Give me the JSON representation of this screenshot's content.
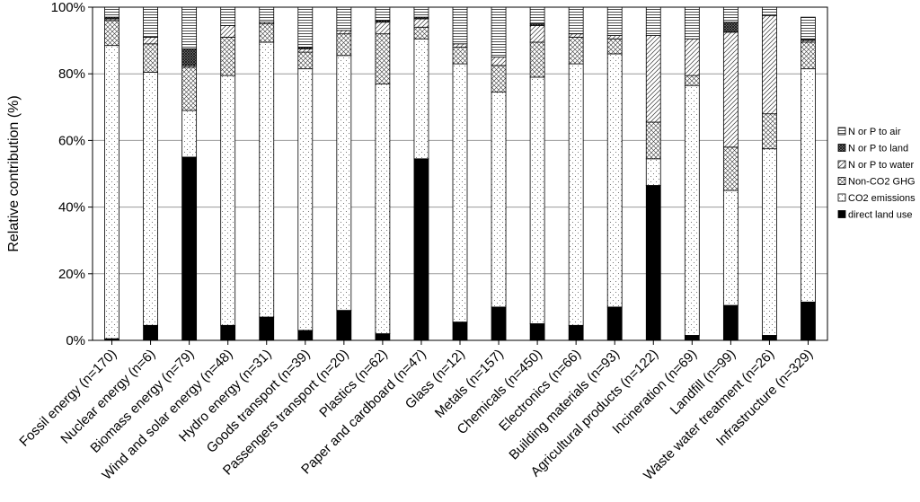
{
  "chart_data": {
    "type": "bar",
    "stacked": true,
    "title": "",
    "xlabel": "",
    "ylabel": "Relative contribution (%)",
    "ylim": [
      0,
      100
    ],
    "yticks": [
      "0%",
      "20%",
      "40%",
      "60%",
      "80%",
      "100%"
    ],
    "grid": true,
    "legend_position": "right",
    "categories": [
      "Fossil energy (n=170)",
      "Nuclear energy (n=6)",
      "Biomass energy (n=79)",
      "Wind and solar energy (n=48)",
      "Hydro energy (n=31)",
      "Goods transport (n=39)",
      "Passengers transport (n=20)",
      "Plastics (n=62)",
      "Paper and cardboard (n=47)",
      "Glass (n=12)",
      "Metals (n=157)",
      "Chemicals (n=450)",
      "Electronics (n=66)",
      "Building materials (n=93)",
      "Agricultural products (n=122)",
      "Incineration (n=69)",
      "Landfill (n=99)",
      "Waste water treatment (n=26)",
      "Infrastructure (n=329)"
    ],
    "series": [
      {
        "name": "direct land use",
        "pattern": "solid",
        "values": [
          0.5,
          4.5,
          55,
          4.5,
          7,
          3,
          9,
          2,
          54.5,
          5.5,
          10,
          5,
          4.5,
          10,
          46.5,
          1.5,
          10.5,
          1.5,
          11.5
        ]
      },
      {
        "name": "CO2 emissions",
        "pattern": "dots",
        "values": [
          88,
          76,
          14,
          75,
          82.5,
          78.5,
          76.5,
          75,
          36,
          77.5,
          64.5,
          74,
          78.5,
          76,
          8,
          75,
          34.5,
          56,
          70
        ]
      },
      {
        "name": "Non-CO2 GHG",
        "pattern": "crosshatch",
        "values": [
          7.5,
          8.5,
          13,
          11.5,
          5.5,
          5,
          6.5,
          15,
          3.5,
          5,
          8,
          10.5,
          8,
          4.5,
          11,
          3,
          13,
          10.5,
          8
        ]
      },
      {
        "name": "N or P to water",
        "pattern": "diagonal",
        "values": [
          0.5,
          2,
          0.5,
          3.5,
          0.5,
          1,
          1,
          3.5,
          2.5,
          1,
          2.5,
          5,
          1,
          1,
          26,
          11,
          34.5,
          29.5,
          0.5
        ]
      },
      {
        "name": "N or P to land",
        "pattern": "dark-crosshatch",
        "values": [
          0.5,
          0,
          5,
          0,
          0,
          0.5,
          0,
          0.5,
          0.5,
          0,
          0,
          0.5,
          0,
          0,
          0,
          0,
          3,
          0,
          0.5
        ]
      },
      {
        "name": "N or P to air",
        "pattern": "horizontal",
        "values": [
          3,
          9,
          12.5,
          5.5,
          4.5,
          12,
          7,
          4,
          3,
          11,
          15,
          5,
          8,
          8.5,
          8.5,
          9.5,
          4.5,
          2.5,
          6.5
        ]
      }
    ]
  }
}
